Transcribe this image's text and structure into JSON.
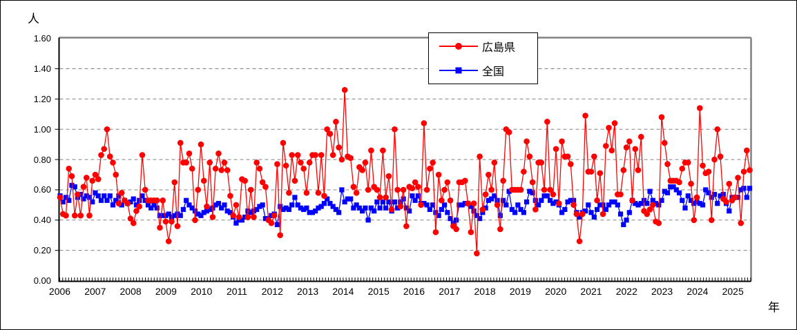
{
  "chart_data": {
    "type": "line",
    "title": "",
    "y_unit_label": "人",
    "x_unit_label": "年",
    "ylim": [
      0.0,
      1.6
    ],
    "ytick_step": 0.2,
    "ytick_labels": [
      "0.00",
      "0.20",
      "0.40",
      "0.60",
      "0.80",
      "1.00",
      "1.20",
      "1.40",
      "1.60"
    ],
    "x_years": [
      "2006",
      "2007",
      "2008",
      "2009",
      "2010",
      "2011",
      "2012",
      "2013",
      "2014",
      "2015",
      "2016",
      "2017",
      "2018",
      "2019",
      "2020",
      "2021",
      "2022",
      "2023",
      "2024",
      "2025"
    ],
    "x_frequency": "monthly",
    "x_range": "2006-01 to 2025-08",
    "grid": "horizontal-dashed",
    "legend_position": "top-center-inside",
    "colors": {
      "grid": "#808080",
      "frame": "#808080",
      "axis": "#000000",
      "background": "#FFFFFF"
    },
    "series": [
      {
        "name": "広島県",
        "color": "#FF0000",
        "marker": "circle",
        "values_by_year": {
          "2006": [
            0.55,
            0.44,
            0.43,
            0.74,
            0.69,
            0.43,
            0.57,
            0.43,
            0.62,
            0.68,
            0.43,
            0.66
          ],
          "2007": [
            0.7,
            0.67,
            0.83,
            0.87,
            1.0,
            0.82,
            0.78,
            0.7,
            0.51,
            0.58,
            0.53,
            0.51
          ],
          "2008": [
            0.41,
            0.38,
            0.46,
            0.49,
            0.83,
            0.6,
            0.53,
            0.53,
            0.53,
            0.53,
            0.35,
            0.53
          ],
          "2009": [
            0.39,
            0.26,
            0.39,
            0.65,
            0.36,
            0.91,
            0.78,
            0.78,
            0.84,
            0.74,
            0.4,
            0.6
          ],
          "2010": [
            0.9,
            0.66,
            0.49,
            0.78,
            0.42,
            0.74,
            0.84,
            0.73,
            0.78,
            0.73,
            0.56,
            0.43
          ],
          "2011": [
            0.5,
            0.42,
            0.67,
            0.66,
            0.42,
            0.6,
            0.42,
            0.78,
            0.74,
            0.65,
            0.62,
            0.4
          ],
          "2012": [
            0.38,
            0.43,
            0.77,
            0.3,
            0.91,
            0.76,
            0.58,
            0.83,
            0.66,
            0.83,
            0.78,
            0.74
          ],
          "2013": [
            0.58,
            0.78,
            0.83,
            0.83,
            0.58,
            0.83,
            0.56,
            1.0,
            0.97,
            0.83,
            1.05,
            0.88
          ],
          "2014": [
            0.8,
            1.26,
            0.82,
            0.81,
            0.62,
            0.58,
            0.75,
            0.73,
            0.78,
            0.6,
            0.86,
            0.62
          ],
          "2015": [
            0.6,
            0.55,
            0.86,
            0.55,
            0.69,
            0.47,
            1.0,
            0.6,
            0.49,
            0.6,
            0.36,
            0.62
          ],
          "2016": [
            0.61,
            0.65,
            0.62,
            0.5,
            1.04,
            0.6,
            0.74,
            0.78,
            0.32,
            0.7,
            0.53,
            0.6
          ],
          "2017": [
            0.65,
            0.53,
            0.36,
            0.34,
            0.65,
            0.65,
            0.66,
            0.51,
            0.32,
            0.51,
            0.18,
            0.82
          ],
          "2018": [
            0.47,
            0.57,
            0.7,
            0.6,
            0.78,
            0.5,
            0.34,
            0.66,
            1.0,
            0.98,
            0.6,
            0.6
          ],
          "2019": [
            0.6,
            0.6,
            0.72,
            0.92,
            0.82,
            0.65,
            0.47,
            0.78,
            0.78,
            0.6,
            1.05,
            0.6
          ],
          "2020": [
            0.57,
            0.87,
            0.51,
            0.92,
            0.82,
            0.82,
            0.77,
            0.5,
            0.44,
            0.26,
            0.44,
            1.09
          ],
          "2021": [
            0.72,
            0.72,
            0.82,
            0.53,
            0.71,
            0.44,
            0.89,
            1.01,
            0.86,
            1.04,
            0.57,
            0.57
          ],
          "2022": [
            0.73,
            0.88,
            0.92,
            0.53,
            0.87,
            0.73,
            0.95,
            0.46,
            0.44,
            0.47,
            0.5,
            0.39
          ],
          "2023": [
            0.38,
            1.08,
            0.91,
            0.77,
            0.66,
            0.66,
            0.66,
            0.65,
            0.74,
            0.78,
            0.78,
            0.64
          ],
          "2024": [
            0.4,
            0.55,
            1.14,
            0.76,
            0.71,
            0.72,
            0.4,
            0.8,
            1.0,
            0.82,
            0.54,
            0.52
          ],
          "2025": [
            0.64,
            0.53,
            0.55,
            0.68,
            0.38,
            0.72,
            0.86,
            0.73
          ]
        }
      },
      {
        "name": "全国",
        "color": "#0000FF",
        "marker": "square",
        "values_by_year": {
          "2006": [
            0.56,
            0.52,
            0.55,
            0.53,
            0.63,
            0.62,
            0.55,
            0.57,
            0.54,
            0.56,
            0.55,
            0.52
          ],
          "2007": [
            0.58,
            0.56,
            0.53,
            0.56,
            0.53,
            0.56,
            0.5,
            0.53,
            0.56,
            0.5,
            0.53,
            0.51
          ],
          "2008": [
            0.52,
            0.54,
            0.5,
            0.53,
            0.56,
            0.53,
            0.5,
            0.48,
            0.5,
            0.48,
            0.43,
            0.43
          ],
          "2009": [
            0.43,
            0.44,
            0.42,
            0.43,
            0.44,
            0.43,
            0.47,
            0.53,
            0.5,
            0.48,
            0.46,
            0.44
          ],
          "2010": [
            0.43,
            0.45,
            0.46,
            0.47,
            0.48,
            0.5,
            0.51,
            0.48,
            0.5,
            0.46,
            0.45,
            0.42
          ],
          "2011": [
            0.38,
            0.4,
            0.4,
            0.42,
            0.46,
            0.45,
            0.46,
            0.47,
            0.49,
            0.5,
            0.41,
            0.41
          ],
          "2012": [
            0.43,
            0.44,
            0.37,
            0.49,
            0.47,
            0.48,
            0.47,
            0.5,
            0.55,
            0.5,
            0.48,
            0.47
          ],
          "2013": [
            0.48,
            0.45,
            0.45,
            0.46,
            0.48,
            0.49,
            0.51,
            0.54,
            0.51,
            0.49,
            0.47,
            0.45
          ],
          "2014": [
            0.6,
            0.52,
            0.54,
            0.54,
            0.48,
            0.5,
            0.48,
            0.46,
            0.48,
            0.4,
            0.48,
            0.46
          ],
          "2015": [
            0.52,
            0.48,
            0.52,
            0.48,
            0.52,
            0.46,
            0.52,
            0.48,
            0.52,
            0.54,
            0.48,
            0.46
          ],
          "2016": [
            0.56,
            0.53,
            0.56,
            0.51,
            0.51,
            0.5,
            0.47,
            0.5,
            0.45,
            0.43,
            0.47,
            0.5
          ],
          "2017": [
            0.45,
            0.41,
            0.38,
            0.4,
            0.5,
            0.5,
            0.51,
            0.51,
            0.49,
            0.46,
            0.43,
            0.41
          ],
          "2018": [
            0.45,
            0.48,
            0.53,
            0.54,
            0.56,
            0.53,
            0.43,
            0.53,
            0.5,
            0.59,
            0.47,
            0.45
          ],
          "2019": [
            0.5,
            0.47,
            0.45,
            0.52,
            0.59,
            0.58,
            0.53,
            0.5,
            0.53,
            0.56,
            0.56,
            0.53
          ],
          "2020": [
            0.51,
            0.52,
            0.5,
            0.45,
            0.47,
            0.52,
            0.53,
            0.53,
            0.45,
            0.42,
            0.45,
            0.46
          ],
          "2021": [
            0.5,
            0.45,
            0.42,
            0.47,
            0.5,
            0.5,
            0.47,
            0.5,
            0.52,
            0.52,
            0.5,
            0.44
          ],
          "2022": [
            0.37,
            0.4,
            0.45,
            0.53,
            0.51,
            0.5,
            0.51,
            0.53,
            0.51,
            0.59,
            0.53,
            0.51
          ],
          "2023": [
            0.5,
            0.53,
            0.59,
            0.58,
            0.62,
            0.62,
            0.6,
            0.58,
            0.53,
            0.48,
            0.56,
            0.53
          ],
          "2024": [
            0.51,
            0.52,
            0.51,
            0.5,
            0.6,
            0.58,
            0.55,
            0.57,
            0.51,
            0.56,
            0.57,
            0.51
          ],
          "2025": [
            0.46,
            0.55,
            0.55,
            0.55,
            0.6,
            0.61,
            0.55,
            0.61
          ]
        }
      }
    ]
  }
}
